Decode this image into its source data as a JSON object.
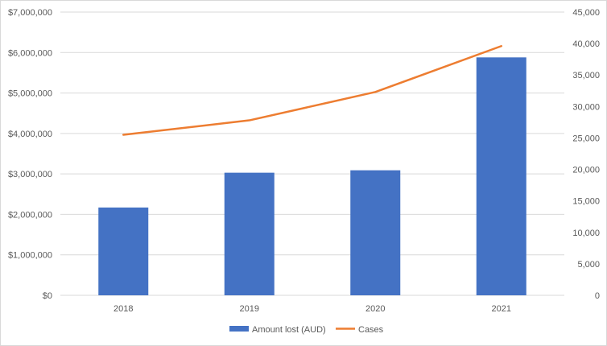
{
  "chart_data": {
    "type": "bar",
    "categories": [
      "2018",
      "2019",
      "2020",
      "2021"
    ],
    "series": [
      {
        "name": "Amount lost (AUD)",
        "type": "bar",
        "axis": "left",
        "values": [
          2170000,
          3030000,
          3090000,
          5880000
        ],
        "color": "#4472C4"
      },
      {
        "name": "Cases",
        "type": "line",
        "axis": "right",
        "values": [
          25500,
          27800,
          32300,
          39600
        ],
        "color": "#ED7D31"
      }
    ],
    "title": "",
    "xlabel": "",
    "ylabel": "",
    "y2label": "",
    "ylim": [
      0,
      7000000
    ],
    "y2lim": [
      0,
      45000
    ],
    "yticks": [
      "$0",
      "$1,000,000",
      "$2,000,000",
      "$3,000,000",
      "$4,000,000",
      "$5,000,000",
      "$6,000,000",
      "$7,000,000"
    ],
    "y2ticks": [
      "0",
      "5,000",
      "10,000",
      "15,000",
      "20,000",
      "25,000",
      "30,000",
      "35,000",
      "40,000",
      "45,000"
    ],
    "grid": true,
    "legend": "bottom",
    "gridColor": "#d9d9d9"
  }
}
